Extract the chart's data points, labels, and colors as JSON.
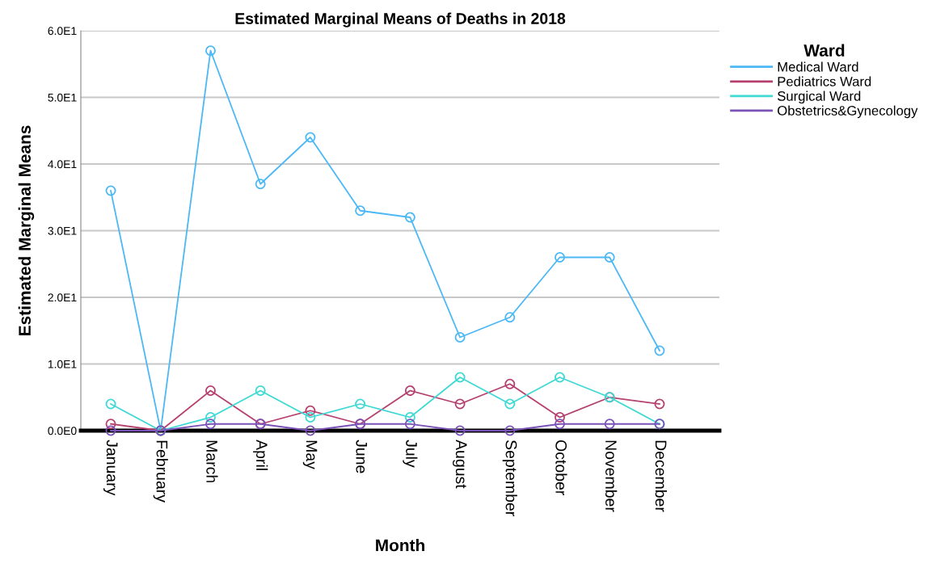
{
  "chart_data": {
    "type": "line",
    "title": "Estimated Marginal Means of Deaths in 2018",
    "xlabel": "Month",
    "ylabel": "Estimated Marginal Means",
    "legend_title": "Ward",
    "categories": [
      "January",
      "February",
      "March",
      "April",
      "May",
      "June",
      "July",
      "August",
      "September",
      "October",
      "November",
      "December"
    ],
    "series": [
      {
        "name": "Medical Ward",
        "color": "#4cb8f5",
        "values": [
          36,
          0,
          57,
          37,
          44,
          33,
          32,
          14,
          17,
          26,
          26,
          12
        ]
      },
      {
        "name": "Pediatrics Ward",
        "color": "#b5406f",
        "values": [
          1,
          0,
          6,
          1,
          3,
          1,
          6,
          4,
          7,
          2,
          5,
          4
        ]
      },
      {
        "name": "Surgical Ward",
        "color": "#3fd9d4",
        "values": [
          4,
          0,
          2,
          6,
          2,
          4,
          2,
          8,
          4,
          8,
          5,
          1
        ]
      },
      {
        "name": "Obstetrics&Gynecology",
        "color": "#7b52b8",
        "values": [
          0,
          0,
          1,
          1,
          0,
          1,
          1,
          0,
          0,
          1,
          1,
          1
        ]
      }
    ],
    "ylim": [
      0,
      60
    ],
    "yticks": [
      {
        "value": 0,
        "label": "0.0E0"
      },
      {
        "value": 10,
        "label": "1.0E1"
      },
      {
        "value": 20,
        "label": "2.0E1"
      },
      {
        "value": 30,
        "label": "3.0E1"
      },
      {
        "value": 40,
        "label": "4.0E1"
      },
      {
        "value": 50,
        "label": "5.0E1"
      },
      {
        "value": 60,
        "label": "6.0E1"
      }
    ],
    "grid": "y",
    "legend": "top right",
    "marker": "circle",
    "line_style": "solid"
  }
}
